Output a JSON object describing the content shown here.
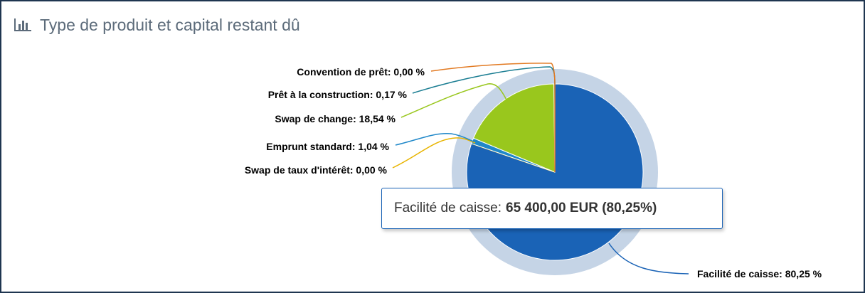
{
  "header": {
    "title": "Type de produit et capital restant dû",
    "icon": "bar-chart-icon"
  },
  "tooltip": {
    "label": "Facilité de caisse:",
    "value": "65 400,00 EUR (80,25%)"
  },
  "colors": {
    "accent": "#1a63b6",
    "halo": "#c5d4e6"
  },
  "chart_data": {
    "type": "pie",
    "title": "Type de produit et capital restant dû",
    "unit": "%",
    "slices": [
      {
        "name": "Facilité de caisse",
        "value": 80.25,
        "label": "Facilité de caisse: 80,25 %",
        "color": "#1a63b6"
      },
      {
        "name": "Swap de taux d'intérêt",
        "value": 0.0,
        "label": "Swap de taux d'intérêt: 0,00 %",
        "color": "#e8b400"
      },
      {
        "name": "Emprunt standard",
        "value": 1.04,
        "label": "Emprunt standard: 1,04 %",
        "color": "#2088c9"
      },
      {
        "name": "Swap de change",
        "value": 18.54,
        "label": "Swap de change: 18,54 %",
        "color": "#99c71d"
      },
      {
        "name": "Prêt à la construction",
        "value": 0.17,
        "label": "Prêt à la construction: 0,17 %",
        "color": "#1a7d92"
      },
      {
        "name": "Convention de prêt",
        "value": 0.0,
        "label": "Convention de prêt: 0,00 %",
        "color": "#e27a22"
      }
    ],
    "highlighted": "Facilité de caisse"
  }
}
